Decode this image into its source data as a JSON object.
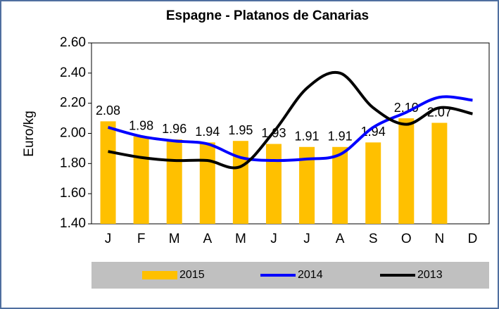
{
  "chart_data": {
    "type": "bar-line",
    "title": "Espagne - Platanos de Canarias",
    "y_label": "Euro/kg",
    "categories": [
      "J",
      "F",
      "M",
      "A",
      "M",
      "J",
      "J",
      "A",
      "S",
      "O",
      "N",
      "D"
    ],
    "series": [
      {
        "name": "2015",
        "type": "bar",
        "color": "#ffc000",
        "values": [
          2.08,
          1.98,
          1.96,
          1.94,
          1.95,
          1.93,
          1.91,
          1.91,
          1.94,
          2.1,
          2.07,
          null
        ],
        "value_labels": [
          "2.08",
          "1.98",
          "1.96",
          "1.94",
          "1.95",
          "1.93",
          "1.91",
          "1.91",
          "1.94",
          "2.10",
          "2.07",
          null
        ]
      },
      {
        "name": "2014",
        "type": "line",
        "color": "#0000ff",
        "values": [
          2.04,
          1.98,
          1.95,
          1.93,
          1.84,
          1.82,
          1.83,
          1.86,
          2.04,
          2.14,
          2.24,
          2.22
        ]
      },
      {
        "name": "2013",
        "type": "line",
        "color": "#000000",
        "values": [
          1.88,
          1.84,
          1.82,
          1.82,
          1.78,
          2.01,
          2.3,
          2.4,
          2.17,
          2.06,
          2.17,
          2.13
        ]
      }
    ],
    "ylim": [
      1.4,
      2.6
    ],
    "yticks": [
      {
        "value": 1.4,
        "label": "1.40"
      },
      {
        "value": 1.6,
        "label": "1.60"
      },
      {
        "value": 1.8,
        "label": "1.80"
      },
      {
        "value": 2.0,
        "label": "2.00"
      },
      {
        "value": 2.2,
        "label": "2.20"
      },
      {
        "value": 2.4,
        "label": "2.40"
      },
      {
        "value": 2.6,
        "label": "2.60"
      }
    ]
  }
}
